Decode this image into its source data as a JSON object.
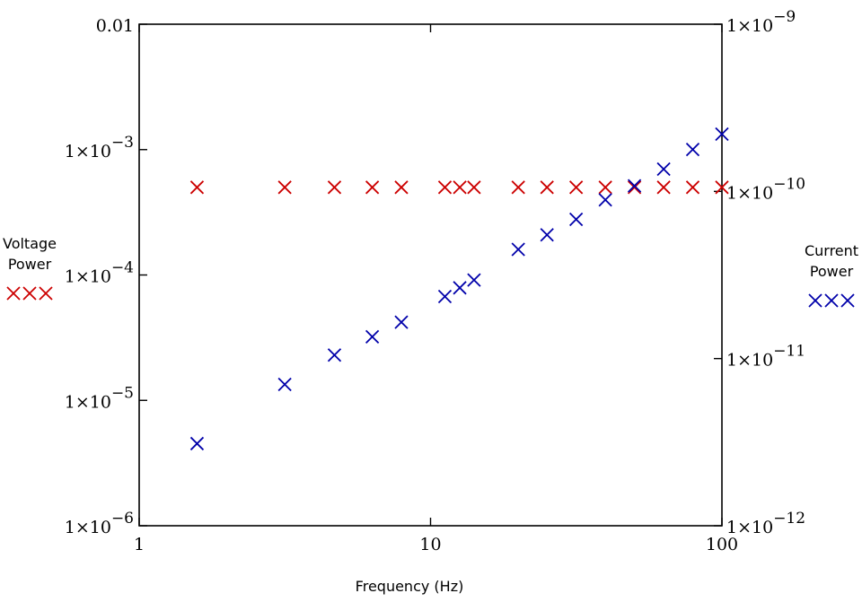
{
  "chart_data": {
    "type": "scatter",
    "xlabel": "Frequency (Hz)",
    "x_scale": "log",
    "xlim": [
      1,
      100
    ],
    "x_ticks": [
      {
        "value": 1,
        "label": "1"
      },
      {
        "value": 10,
        "label": "10"
      },
      {
        "value": 100,
        "label": "100"
      }
    ],
    "y_left": {
      "scale": "log",
      "lim": [
        1e-06,
        0.01
      ],
      "ticks": [
        {
          "value": 0.01,
          "label": "0.01",
          "plain": true
        },
        {
          "value": 0.001,
          "label": "1×10",
          "exp": "−3"
        },
        {
          "value": 0.0001,
          "label": "1×10",
          "exp": "−4"
        },
        {
          "value": 1e-05,
          "label": "1×10",
          "exp": "−5"
        },
        {
          "value": 1e-06,
          "label": "1×10",
          "exp": "−6"
        }
      ]
    },
    "y_right": {
      "scale": "log",
      "lim": [
        1e-12,
        1e-09
      ],
      "ticks": [
        {
          "value": 1e-09,
          "label": "1×10",
          "exp": "−9"
        },
        {
          "value": 1e-10,
          "label": "1×10",
          "exp": "−10"
        },
        {
          "value": 1e-11,
          "label": "1×10",
          "exp": "−11"
        },
        {
          "value": 1e-12,
          "label": "1×10",
          "exp": "−12"
        }
      ]
    },
    "series": [
      {
        "name": "Voltage Power",
        "label_lines": [
          "Voltage",
          "Power"
        ],
        "axis": "left",
        "color": "#cc0000",
        "marker": "x",
        "x": [
          1.58,
          3.16,
          4.68,
          6.31,
          7.94,
          11.2,
          12.6,
          14.1,
          20.0,
          25.1,
          31.6,
          39.8,
          50.1,
          63.1,
          79.4,
          100
        ],
        "y": [
          0.0005,
          0.0005,
          0.0005,
          0.0005,
          0.0005,
          0.0005,
          0.0005,
          0.0005,
          0.0005,
          0.0005,
          0.0005,
          0.0005,
          0.0005,
          0.0005,
          0.0005,
          0.0005
        ]
      },
      {
        "name": "Current Power",
        "label_lines": [
          "Current",
          "Power"
        ],
        "axis": "right",
        "color": "#0000aa",
        "marker": "x",
        "x": [
          1.58,
          3.16,
          4.68,
          6.31,
          7.94,
          11.2,
          12.6,
          14.1,
          20.0,
          25.1,
          31.6,
          39.8,
          50.1,
          63.1,
          79.4,
          100
        ],
        "y": [
          3.1e-12,
          7e-12,
          1.05e-11,
          1.35e-11,
          1.65e-11,
          2.35e-11,
          2.65e-11,
          2.95e-11,
          4.5e-11,
          5.5e-11,
          6.8e-11,
          8.9e-11,
          1.08e-10,
          1.36e-10,
          1.78e-10,
          2.2e-10
        ]
      }
    ]
  }
}
